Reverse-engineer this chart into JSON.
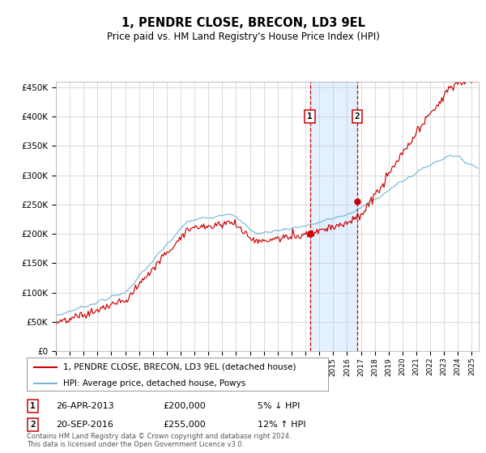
{
  "title": "1, PENDRE CLOSE, BRECON, LD3 9EL",
  "subtitle": "Price paid vs. HM Land Registry's House Price Index (HPI)",
  "footer": "Contains HM Land Registry data © Crown copyright and database right 2024.\nThis data is licensed under the Open Government Licence v3.0.",
  "legend_line1": "1, PENDRE CLOSE, BRECON, LD3 9EL (detached house)",
  "legend_line2": "HPI: Average price, detached house, Powys",
  "sale1_label": "1",
  "sale1_date": "26-APR-2013",
  "sale1_price": "£200,000",
  "sale1_hpi": "5% ↓ HPI",
  "sale1_year": 2013.32,
  "sale1_value": 200000,
  "sale2_label": "2",
  "sale2_date": "20-SEP-2016",
  "sale2_price": "£255,000",
  "sale2_hpi": "12% ↑ HPI",
  "sale2_year": 2016.75,
  "sale2_value": 255000,
  "hpi_color": "#7ab8d9",
  "sale_color": "#cc0000",
  "background_color": "#ffffff",
  "grid_color": "#cccccc",
  "shaded_region_color": "#ddeeff",
  "ylim": [
    0,
    460000
  ],
  "xlim_start": 1995,
  "xlim_end": 2025.5
}
